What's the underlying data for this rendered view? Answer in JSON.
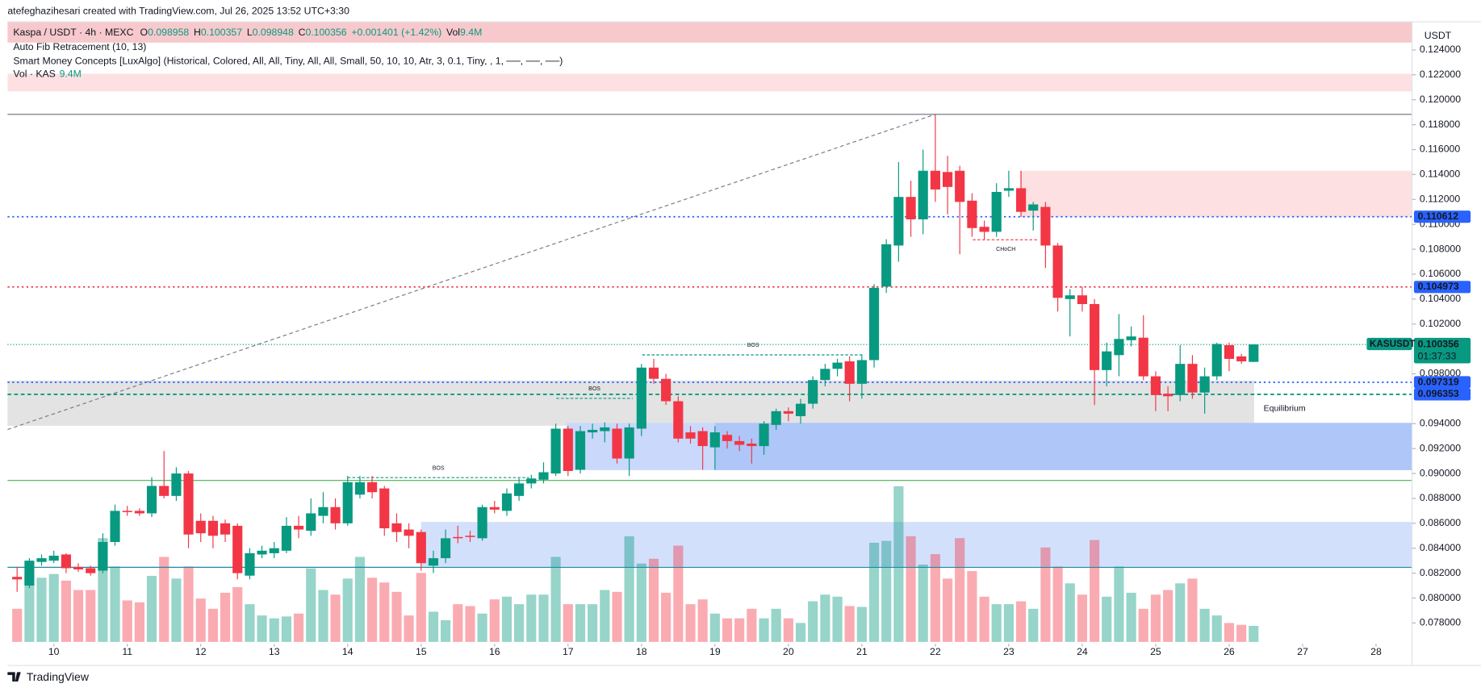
{
  "header": {
    "attribution": "atefeghazihesari created with TradingView.com, Jul 26, 2025 13:52 UTC+3:30"
  },
  "chart_data": {
    "type": "candlestick",
    "legend": {
      "symbol": "Kaspa / USDT · 4h · MEXC",
      "o": "O",
      "h": "H",
      "l": "L",
      "c": "C",
      "change": "+0.001401 (+1.42%)",
      "vol": "Vol",
      "vol_value": "9.4M",
      "indicators": [
        "Auto Fib Retracement (10, 13)",
        "Smart Money Concepts [LuxAlgo] (Historical, Colored, All, All, Tiny, All, All, Small, 50, 10, 10, Atr, 3, 0.1, Tiny, , 1, ──, ──, ──)"
      ],
      "vol_name": "Vol · KAS"
    },
    "currency": "USDT",
    "up_color": "#089981",
    "down_color": "#f23645",
    "x": [
      9.5,
      9.667,
      9.833,
      10,
      10.167,
      10.333,
      10.5,
      10.667,
      10.833,
      11,
      11.167,
      11.333,
      11.5,
      11.667,
      11.833,
      12,
      12.167,
      12.333,
      12.5,
      12.667,
      12.833,
      13,
      13.167,
      13.333,
      13.5,
      13.667,
      13.833,
      14,
      14.167,
      14.333,
      14.5,
      14.667,
      14.833,
      15,
      15.167,
      15.333,
      15.5,
      15.667,
      15.833,
      16,
      16.167,
      16.333,
      16.5,
      16.667,
      16.833,
      17,
      17.167,
      17.333,
      17.5,
      17.667,
      17.833,
      18,
      18.167,
      18.333,
      18.5,
      18.667,
      18.833,
      19,
      19.167,
      19.333,
      19.5,
      19.667,
      19.833,
      20,
      20.167,
      20.333,
      20.5,
      20.667,
      20.833,
      21,
      21.167,
      21.333,
      21.5,
      21.667,
      21.833,
      22,
      22.167,
      22.333,
      22.5,
      22.667,
      22.833,
      23,
      23.167,
      23.333,
      23.5,
      23.667,
      23.833,
      24,
      24.167,
      24.333,
      24.5,
      24.667,
      24.833,
      25,
      25.167,
      25.333,
      25.5,
      25.667,
      25.833,
      26,
      26.167,
      26.333
    ],
    "open": [
      0.0817,
      0.081,
      0.0829,
      0.083,
      0.0835,
      0.0825,
      0.0824,
      0.0822,
      0.0845,
      0.087,
      0.087,
      0.0868,
      0.089,
      0.0882,
      0.09,
      0.0862,
      0.0862,
      0.086,
      0.0858,
      0.0818,
      0.0835,
      0.0836,
      0.0838,
      0.0858,
      0.0854,
      0.0866,
      0.0873,
      0.086,
      0.0883,
      0.0893,
      0.0888,
      0.086,
      0.0855,
      0.0853,
      0.0826,
      0.0832,
      0.0849,
      0.085,
      0.0848,
      0.0873,
      0.087,
      0.0882,
      0.0892,
      0.0895,
      0.09,
      0.0936,
      0.0903,
      0.0933,
      0.0934,
      0.0936,
      0.0912,
      0.0936,
      0.0985,
      0.0976,
      0.0958,
      0.0933,
      0.0934,
      0.0921,
      0.0931,
      0.0926,
      0.0924,
      0.0922,
      0.0939,
      0.095,
      0.0946,
      0.0956,
      0.0975,
      0.0984,
      0.099,
      0.0972,
      0.0991,
      0.105,
      0.1083,
      0.1122,
      0.1104,
      0.1143,
      0.1142,
      0.1143,
      0.1119,
      0.1098,
      0.1094,
      0.1127,
      0.1129,
      0.1111,
      0.1114,
      0.1083,
      0.104,
      0.1043,
      0.1036,
      0.0983,
      0.0995,
      0.1007,
      0.1009,
      0.0978,
      0.0964,
      0.0963,
      0.0988,
      0.0965,
      0.0978,
      0.1003,
      0.0994,
      0.098958
    ],
    "high": [
      0.0825,
      0.0832,
      0.0835,
      0.0838,
      0.0836,
      0.0828,
      0.0826,
      0.0852,
      0.0875,
      0.0874,
      0.0872,
      0.0897,
      0.0918,
      0.0905,
      0.0902,
      0.0868,
      0.0866,
      0.0863,
      0.086,
      0.084,
      0.0842,
      0.0845,
      0.0865,
      0.0866,
      0.088,
      0.0885,
      0.088,
      0.0898,
      0.0898,
      0.0898,
      0.089,
      0.0868,
      0.086,
      0.0855,
      0.0838,
      0.0855,
      0.0858,
      0.0854,
      0.0875,
      0.0878,
      0.0888,
      0.0896,
      0.0899,
      0.0909,
      0.094,
      0.0938,
      0.0938,
      0.094,
      0.0941,
      0.094,
      0.094,
      0.0988,
      0.0992,
      0.098,
      0.0962,
      0.0938,
      0.0937,
      0.0938,
      0.0934,
      0.093,
      0.0928,
      0.0942,
      0.0952,
      0.0953,
      0.096,
      0.0978,
      0.0988,
      0.0992,
      0.0994,
      0.0995,
      0.1052,
      0.1088,
      0.115,
      0.1135,
      0.116,
      0.1188,
      0.1155,
      0.1147,
      0.1125,
      0.1103,
      0.1133,
      0.1143,
      0.1143,
      0.1118,
      0.1118,
      0.1085,
      0.1048,
      0.105,
      0.104,
      0.1005,
      0.1028,
      0.1018,
      0.1027,
      0.0982,
      0.097,
      0.1003,
      0.0995,
      0.0985,
      0.1005,
      0.1005,
      0.0996,
      0.100357
    ],
    "low": [
      0.0805,
      0.0808,
      0.0826,
      0.0828,
      0.082,
      0.0821,
      0.0818,
      0.082,
      0.0842,
      0.0866,
      0.0866,
      0.0865,
      0.088,
      0.0878,
      0.084,
      0.0845,
      0.084,
      0.0845,
      0.0815,
      0.0815,
      0.0832,
      0.0832,
      0.0836,
      0.0848,
      0.085,
      0.086,
      0.0855,
      0.0858,
      0.088,
      0.088,
      0.085,
      0.0845,
      0.084,
      0.0822,
      0.082,
      0.0828,
      0.0844,
      0.0845,
      0.0846,
      0.0868,
      0.0866,
      0.0878,
      0.0888,
      0.0892,
      0.0898,
      0.0898,
      0.09,
      0.0928,
      0.0925,
      0.0908,
      0.0898,
      0.093,
      0.0972,
      0.0955,
      0.0925,
      0.0924,
      0.0903,
      0.0903,
      0.092,
      0.0918,
      0.0908,
      0.0915,
      0.0935,
      0.0942,
      0.094,
      0.0952,
      0.097,
      0.0978,
      0.0958,
      0.096,
      0.0985,
      0.1045,
      0.107,
      0.109,
      0.1092,
      0.1118,
      0.1108,
      0.1076,
      0.109,
      0.1088,
      0.109,
      0.1122,
      0.1106,
      0.1095,
      0.1065,
      0.103,
      0.101,
      0.103,
      0.0955,
      0.097,
      0.0978,
      0.1002,
      0.0975,
      0.095,
      0.095,
      0.0958,
      0.096,
      0.0948,
      0.0975,
      0.0982,
      0.0988,
      0.098948
    ],
    "close": [
      0.0815,
      0.083,
      0.0832,
      0.0834,
      0.0824,
      0.0823,
      0.082,
      0.0845,
      0.087,
      0.0869,
      0.0868,
      0.089,
      0.0882,
      0.09,
      0.0851,
      0.0852,
      0.085,
      0.0851,
      0.082,
      0.0836,
      0.0838,
      0.084,
      0.0858,
      0.0855,
      0.0868,
      0.0873,
      0.086,
      0.0893,
      0.0893,
      0.0885,
      0.0856,
      0.0853,
      0.085,
      0.0828,
      0.0832,
      0.0848,
      0.0848,
      0.0849,
      0.0873,
      0.0871,
      0.0884,
      0.0892,
      0.0896,
      0.0901,
      0.0936,
      0.0902,
      0.0934,
      0.0935,
      0.0937,
      0.0912,
      0.0937,
      0.0985,
      0.0976,
      0.0958,
      0.0928,
      0.0928,
      0.0922,
      0.0933,
      0.0926,
      0.0923,
      0.0922,
      0.094,
      0.095,
      0.0948,
      0.0956,
      0.0975,
      0.0984,
      0.0989,
      0.0972,
      0.0991,
      0.1049,
      0.1084,
      0.1122,
      0.1104,
      0.1143,
      0.1128,
      0.113,
      0.1118,
      0.1097,
      0.1094,
      0.1126,
      0.1129,
      0.111,
      0.1116,
      0.1083,
      0.1041,
      0.1043,
      0.1036,
      0.0983,
      0.0998,
      0.1008,
      0.101,
      0.0978,
      0.0963,
      0.0962,
      0.0988,
      0.0965,
      0.0978,
      0.1004,
      0.0992,
      0.099,
      0.100356
    ],
    "volume": [
      19400000,
      39800000,
      37600000,
      39800000,
      35900000,
      30400000,
      30400000,
      60800000,
      44200000,
      24300000,
      23200000,
      38700000,
      49800000,
      37100000,
      44200000,
      25400000,
      19400000,
      28800000,
      32100000,
      22100000,
      15500000,
      13800000,
      14900000,
      16600000,
      43100000,
      30400000,
      27700000,
      37100000,
      49800000,
      37600000,
      34800000,
      29300000,
      15500000,
      40400000,
      17700000,
      12700000,
      22100000,
      21000000,
      16600000,
      24900000,
      26500000,
      22100000,
      27700000,
      27700000,
      49800000,
      22100000,
      22100000,
      22100000,
      30400000,
      29300000,
      61900000,
      45900000,
      48700000,
      28800000,
      56400000,
      22100000,
      24900000,
      16600000,
      13800000,
      13800000,
      19400000,
      13800000,
      19400000,
      13800000,
      11100000,
      23800000,
      27700000,
      26500000,
      21000000,
      20500000,
      58100000,
      59200000,
      91200000,
      61900000,
      45300000,
      51400000,
      37100000,
      60800000,
      41500000,
      26500000,
      22100000,
      22100000,
      23800000,
      19400000,
      55300000,
      44200000,
      34300000,
      27700000,
      59700000,
      26500000,
      44200000,
      28800000,
      19400000,
      27700000,
      30400000,
      34300000,
      37100000,
      19400000,
      15500000,
      11100000,
      10000000,
      9400000
    ],
    "volume_lim": [
      0,
      363300000
    ],
    "xlim": [
      9.37,
      28.49
    ],
    "xticks": [
      10,
      11,
      12,
      13,
      14,
      15,
      16,
      17,
      18,
      19,
      20,
      21,
      22,
      23,
      24,
      25,
      26,
      27,
      28
    ],
    "ylim": [
      0.07648,
      0.12626
    ],
    "yticks": [
      {
        "value": 0.078,
        "label": "0.078000"
      },
      {
        "value": 0.08,
        "label": "0.080000"
      },
      {
        "value": 0.082,
        "label": "0.082000"
      },
      {
        "value": 0.084,
        "label": "0.084000"
      },
      {
        "value": 0.086,
        "label": "0.086000"
      },
      {
        "value": 0.088,
        "label": "0.088000"
      },
      {
        "value": 0.09,
        "label": "0.090000"
      },
      {
        "value": 0.092,
        "label": "0.092000"
      },
      {
        "value": 0.094,
        "label": "0.094000"
      },
      {
        "value": 0.098,
        "label": "0.098000"
      },
      {
        "value": 0.102,
        "label": "0.102000"
      },
      {
        "value": 0.104,
        "label": "0.104000"
      },
      {
        "value": 0.106,
        "label": "0.106000"
      },
      {
        "value": 0.108,
        "label": "0.108000"
      },
      {
        "value": 0.11,
        "label": "0.110000"
      },
      {
        "value": 0.112,
        "label": "0.112000"
      },
      {
        "value": 0.114,
        "label": "0.114000"
      },
      {
        "value": 0.116,
        "label": "0.116000"
      },
      {
        "value": 0.118,
        "label": "0.118000"
      },
      {
        "value": 0.12,
        "label": "0.120000"
      },
      {
        "value": 0.122,
        "label": "0.122000"
      },
      {
        "value": 0.124,
        "label": "0.124000"
      }
    ],
    "grid": false,
    "zones": [
      {
        "x": [
          9.37,
          28.49
        ],
        "y": [
          0.12459,
          0.12626
        ],
        "color": "#f7c9cc"
      },
      {
        "x": [
          9.37,
          28.49
        ],
        "y": [
          0.12067,
          0.12209
        ],
        "color": "#fde0e2"
      },
      {
        "x": [
          23.15,
          28.49
        ],
        "y": [
          0.11058,
          0.11429
        ],
        "color": "#fde0e2"
      },
      {
        "x": [
          9.37,
          26.34
        ],
        "y": [
          0.09383,
          0.09747
        ],
        "color": "#e3e3e3",
        "label": "Equilibrium"
      },
      {
        "x": [
          16.98,
          28.49
        ],
        "y": [
          0.09027,
          0.09406
        ],
        "color": "#c9d8fb"
      },
      {
        "x": [
          19.0,
          28.49
        ],
        "y": [
          0.09027,
          0.09406
        ],
        "color": "#aec6f8"
      },
      {
        "x": [
          15.0,
          28.49
        ],
        "y": [
          0.08255,
          0.08611
        ],
        "color": "#d3e0fc"
      }
    ],
    "lines": [
      {
        "value": 0.11883,
        "color": "#787b86"
      },
      {
        "value": 0.08944,
        "color": "#4caf50"
      },
      {
        "value": 0.08247,
        "color": "#1e88a8"
      }
    ],
    "fib_trend": {
      "x": [
        9.37,
        22.0
      ],
      "y": [
        0.09353,
        0.11883
      ]
    },
    "levels": [
      {
        "value": 0.110612,
        "color": "#2962ff",
        "dash": "2 3"
      },
      {
        "value": 0.104973,
        "color": "#f23645",
        "dash": "2 3",
        "label_color": "#2962ff"
      },
      {
        "value": 0.097319,
        "color": "#2962ff",
        "dash": "2 3"
      },
      {
        "value": 0.096353,
        "color": "#089981",
        "dash": "4 3",
        "label_color": "#2962ff"
      }
    ],
    "price_label": {
      "symbol": "KASUSDT",
      "countdown": "01:37:33",
      "color": "#089981"
    },
    "structures": [
      {
        "text": "BOS",
        "x": [
          14.0,
          16.47
        ],
        "y": 0.08967,
        "color": "#089981"
      },
      {
        "text": "BOS",
        "x": [
          16.84,
          17.88
        ],
        "y": 0.09603,
        "color": "#089981"
      },
      {
        "text": "BOS",
        "x": [
          18.01,
          21.03
        ],
        "y": 0.09952,
        "color": "#089981"
      },
      {
        "text": "CHoCH",
        "x": [
          22.51,
          23.41
        ],
        "y": 0.10876,
        "color": "#f23645"
      }
    ]
  },
  "footer": {
    "brand": "TradingView"
  }
}
